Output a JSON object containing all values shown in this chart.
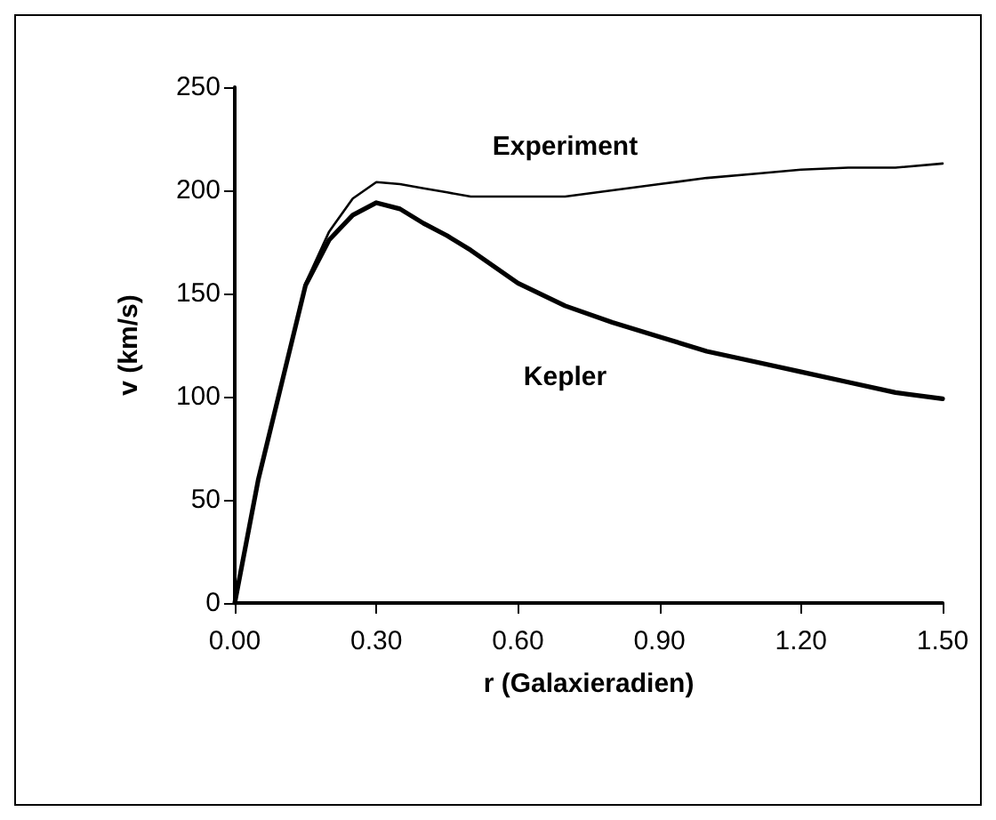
{
  "chart_data": {
    "type": "line",
    "xlabel": "r (Galaxieradien)",
    "ylabel": "v (km/s)",
    "x": [
      0,
      0.05,
      0.1,
      0.15,
      0.2,
      0.25,
      0.3,
      0.35,
      0.4,
      0.45,
      0.5,
      0.6,
      0.7,
      0.8,
      0.9,
      1.0,
      1.1,
      1.2,
      1.3,
      1.4,
      1.5
    ],
    "series": [
      {
        "name": "Experiment",
        "color": "#000000",
        "values": [
          0,
          60,
          108,
          155,
          180,
          196,
          204,
          203,
          201,
          199,
          197,
          197,
          197,
          200,
          203,
          206,
          208,
          210,
          211,
          211,
          213
        ]
      },
      {
        "name": "Kepler",
        "color": "#000000",
        "values": [
          0,
          60,
          107,
          154,
          176,
          188,
          194,
          191,
          184,
          178,
          171,
          155,
          144,
          136,
          129,
          122,
          117,
          112,
          107,
          102,
          99
        ]
      }
    ],
    "xlim": [
      0,
      1.5
    ],
    "xticks": [
      {
        "value": 0,
        "label": "0.00"
      },
      {
        "value": 0.3,
        "label": "0.30"
      },
      {
        "value": 0.6,
        "label": "0.60"
      },
      {
        "value": 0.9,
        "label": "0.90"
      },
      {
        "value": 1.2,
        "label": "1.20"
      },
      {
        "value": 1.5,
        "label": "1.50"
      }
    ],
    "ylim": [
      0,
      250
    ],
    "yticks": [
      0,
      50,
      100,
      150,
      200,
      250
    ],
    "grid": false,
    "legend": false,
    "marker": "none",
    "line_style": "solid"
  }
}
